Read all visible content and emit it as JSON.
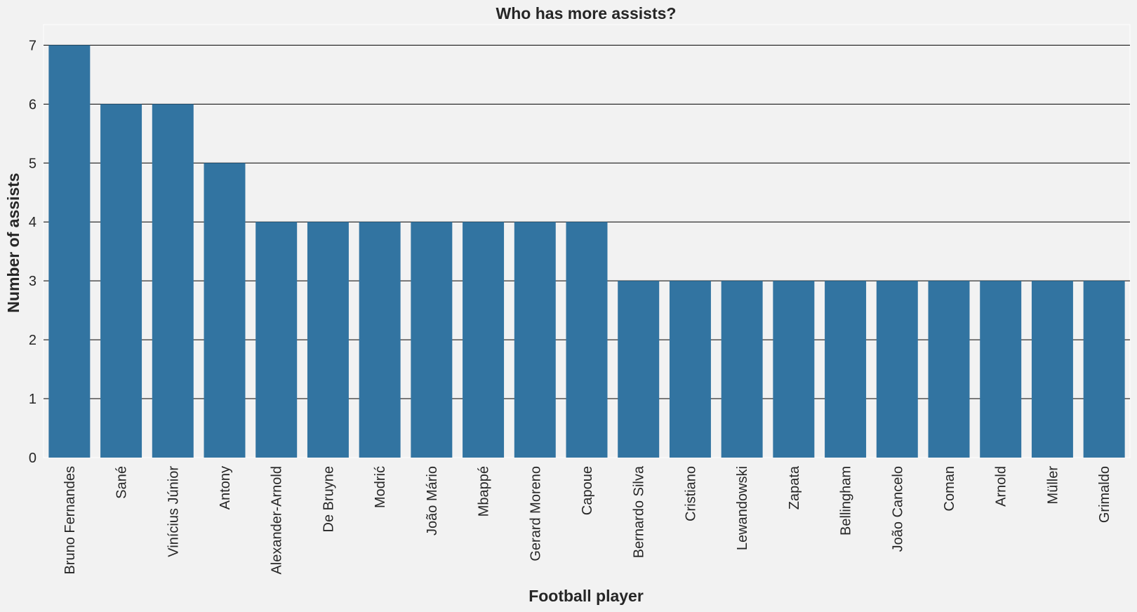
{
  "chart_data": {
    "type": "bar",
    "title": "Who has more assists?",
    "xlabel": "Football player",
    "ylabel": "Number of assists",
    "categories": [
      "Bruno Fernandes",
      "Sané",
      "Vinícius Júnior",
      "Antony",
      "Alexander-Arnold",
      "De Bruyne",
      "Modrić",
      "João Mário",
      "Mbappé",
      "Gerard Moreno",
      "Capoue",
      "Bernardo Silva",
      "Cristiano",
      "Lewandowski",
      "Zapata",
      "Bellingham",
      "João Cancelo",
      "Coman",
      "Arnold",
      "Müller",
      "Grimaldo"
    ],
    "values": [
      7,
      6,
      6,
      5,
      4,
      4,
      4,
      4,
      4,
      4,
      4,
      3,
      3,
      3,
      3,
      3,
      3,
      3,
      3,
      3,
      3
    ],
    "ylim": [
      0,
      7.35
    ],
    "yticks": [
      "0",
      "1",
      "2",
      "3",
      "4",
      "5",
      "6",
      "7"
    ],
    "grid": true,
    "colors": {
      "bar": "#3274a1",
      "background": "#f2f2f2",
      "grid": "#000000",
      "text": "#262626"
    }
  }
}
